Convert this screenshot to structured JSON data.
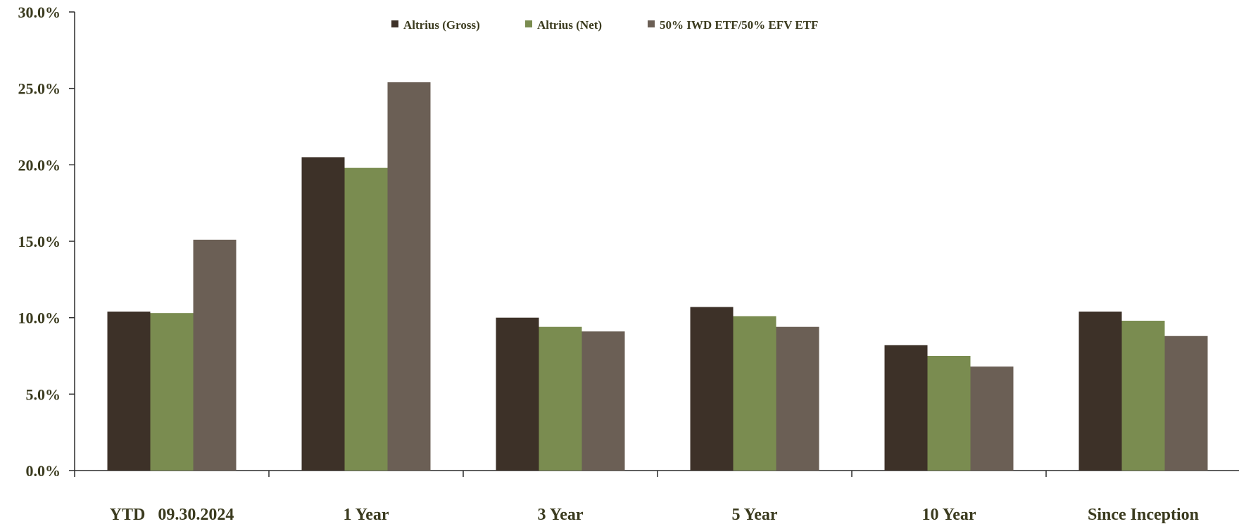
{
  "chart_data": {
    "type": "bar",
    "categories": [
      "YTD   09.30.2024",
      "1 Year",
      "3 Year",
      "5 Year",
      "10 Year",
      "Since Inception"
    ],
    "series": [
      {
        "name": "Altrius (Gross)",
        "color": "#3d3128",
        "values": [
          10.4,
          20.5,
          10.0,
          10.7,
          8.2,
          10.4
        ]
      },
      {
        "name": "Altrius (Net)",
        "color": "#7a8c50",
        "values": [
          10.3,
          19.8,
          9.4,
          10.1,
          7.5,
          9.8
        ]
      },
      {
        "name": "50% IWD ETF/50% EFV ETF",
        "color": "#6b5f55",
        "values": [
          15.1,
          25.4,
          9.1,
          9.4,
          6.8,
          8.8
        ]
      }
    ],
    "ylim": [
      0,
      30
    ],
    "yticks": [
      "0.0%",
      "5.0%",
      "10.0%",
      "15.0%",
      "20.0%",
      "25.0%",
      "30.0%"
    ],
    "ytick_values": [
      0,
      5,
      10,
      15,
      20,
      25,
      30
    ],
    "legend_position": "top-center",
    "grid": false
  }
}
